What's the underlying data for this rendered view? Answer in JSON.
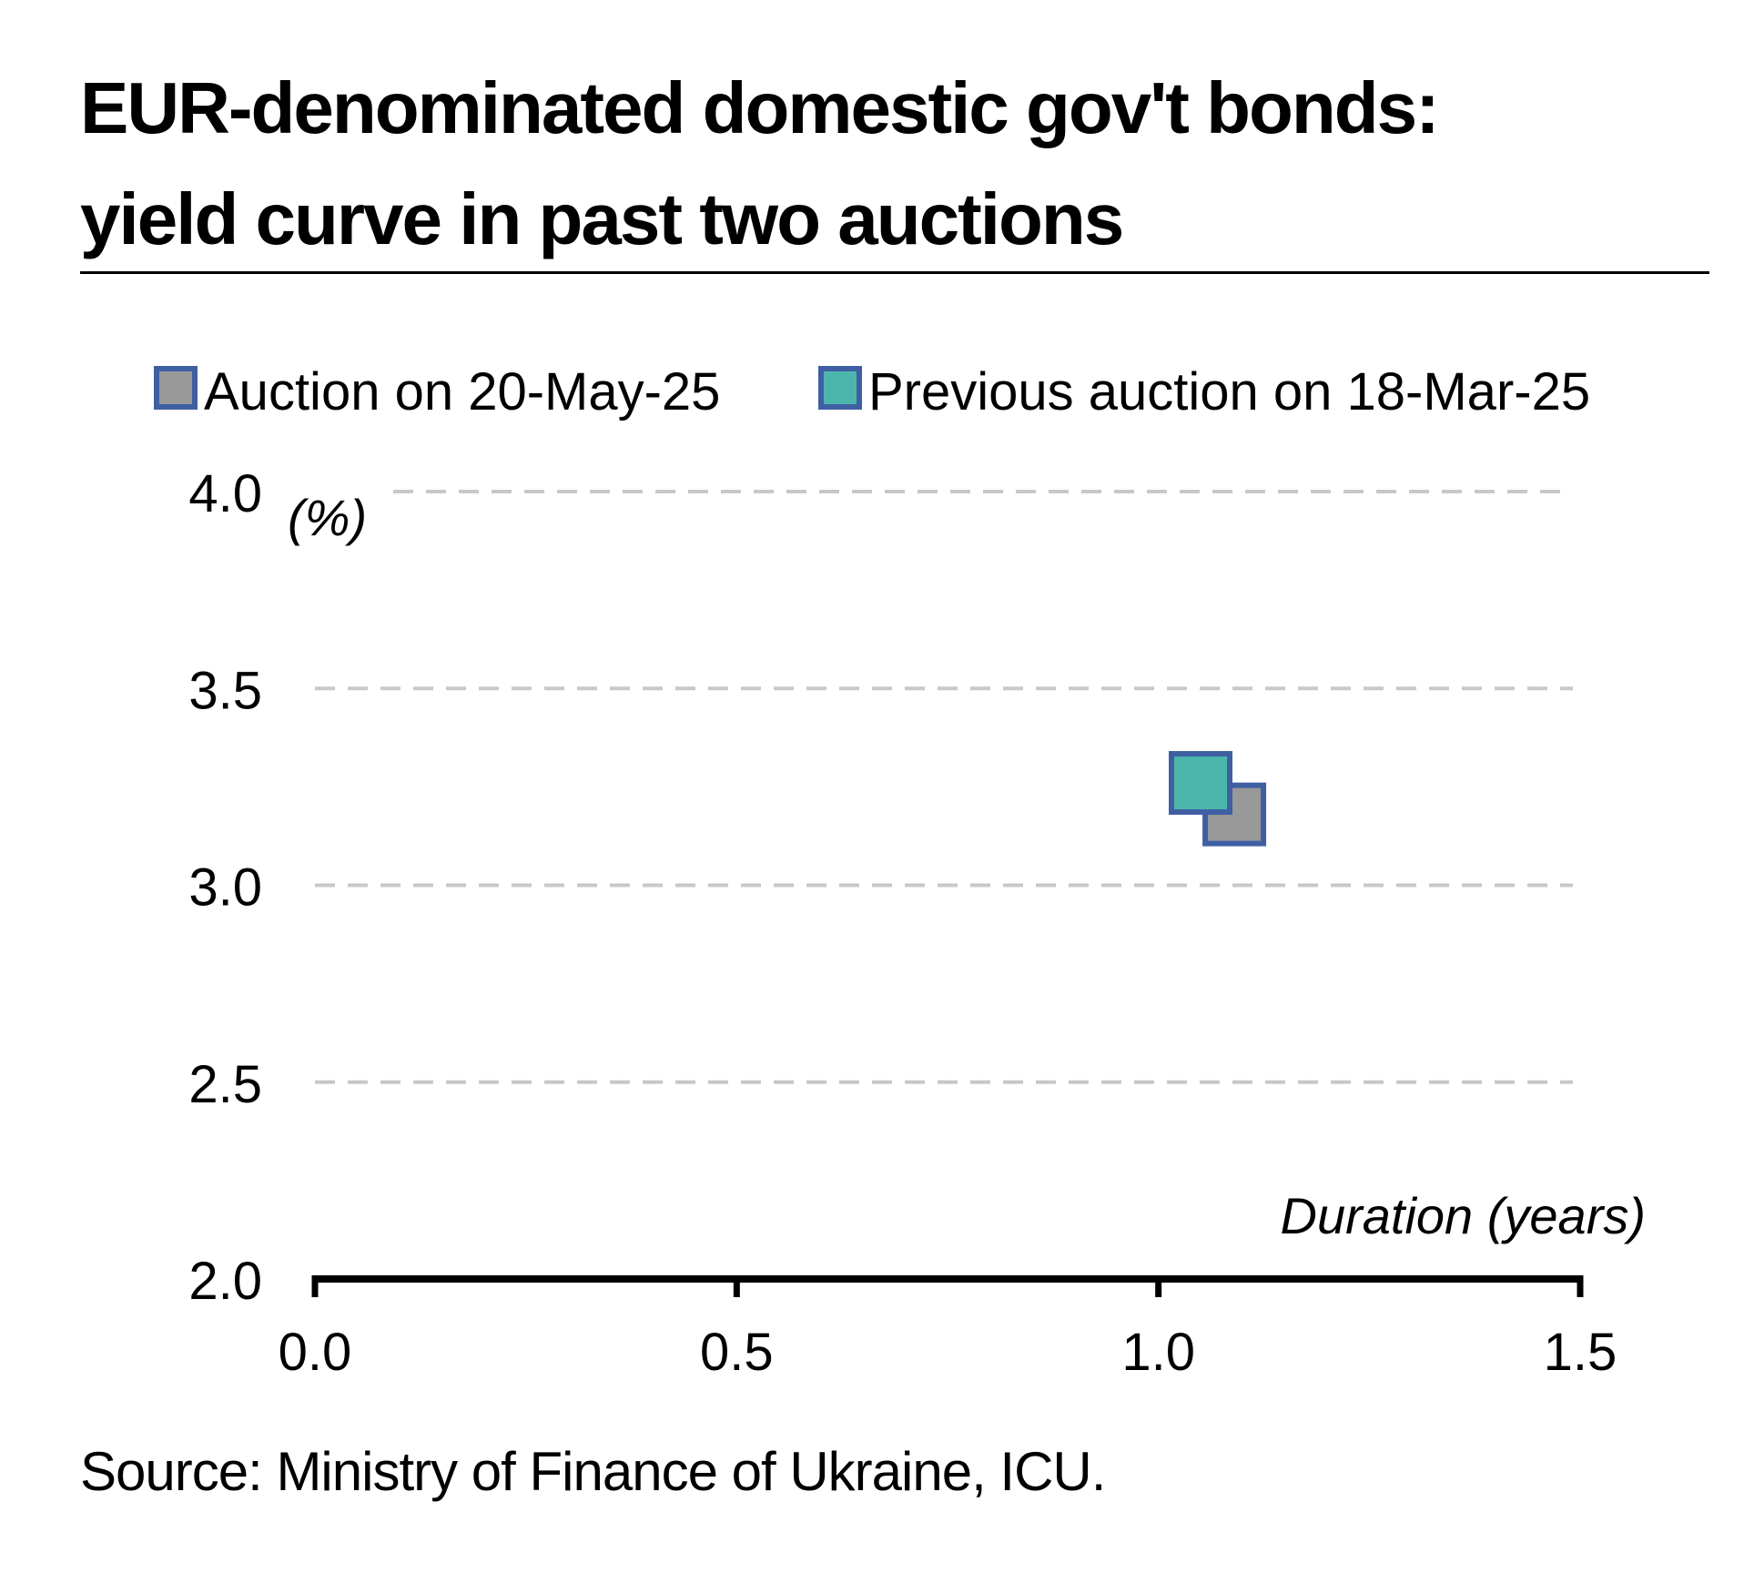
{
  "title": {
    "line1": "EUR-denominated domestic gov't bonds:",
    "line2": "yield curve in past two auctions"
  },
  "source": "Source: Ministry of Finance of Ukraine, ICU.",
  "chart_data": {
    "type": "scatter",
    "title": "EUR-denominated domestic gov't bonds: yield curve in past two auctions",
    "xlabel": "Duration (years)",
    "ylabel": "(%)",
    "xlim": [
      0,
      1.5
    ],
    "ylim": [
      2.0,
      4.0
    ],
    "xticks": [
      "0.0",
      "0.5",
      "1.0",
      "1.5"
    ],
    "yticks": [
      "2.0",
      "2.5",
      "3.0",
      "3.5",
      "4.0"
    ],
    "grid": "horizontal dashed",
    "legend_position": "top",
    "series": [
      {
        "name": "Auction on 20-May-25",
        "color": "#999999",
        "edge_color": "#3F5FA3",
        "marker": "square",
        "points": [
          {
            "x": 1.09,
            "y": 3.18
          }
        ]
      },
      {
        "name": "Previous auction on 18-Mar-25",
        "color": "#4DB6AC",
        "edge_color": "#3F5FA3",
        "marker": "square",
        "points": [
          {
            "x": 1.05,
            "y": 3.26
          }
        ]
      }
    ]
  }
}
